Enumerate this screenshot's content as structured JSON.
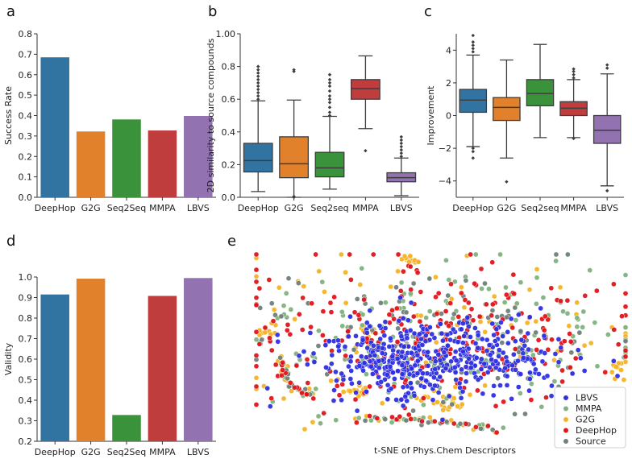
{
  "colors": {
    "DeepHop": "#3274a1",
    "G2G": "#e1812c",
    "Seq2Seq": "#3a923a",
    "MMPA": "#c03d3e",
    "LBVS": "#9372b2",
    "Source": "#808080",
    "scatter_LBVS": "#2e2fe0",
    "scatter_MMPA": "#7fb27f",
    "scatter_G2G": "#f5b324",
    "scatter_DeepHop": "#e0141a",
    "scatter_Source": "#6f7f7a"
  },
  "chart_data": [
    {
      "id": "a",
      "panel_label": "a",
      "type": "bar",
      "categories": [
        "DeepHop",
        "G2G",
        "Seq2Seq",
        "MMPA",
        "LBVS"
      ],
      "values": [
        0.685,
        0.322,
        0.381,
        0.327,
        0.398
      ],
      "ylabel": "Success Rate",
      "xlabel": "",
      "ylim": [
        0,
        0.8
      ],
      "yticks": [
        0.0,
        0.1,
        0.2,
        0.3,
        0.4,
        0.5,
        0.6,
        0.7,
        0.8
      ],
      "ytick_labels": [
        "0.0",
        "0.1",
        "0.2",
        "0.3",
        "0.4",
        "0.5",
        "0.6",
        "0.7",
        "0.8"
      ]
    },
    {
      "id": "b",
      "panel_label": "b",
      "type": "box",
      "categories": [
        "DeepHop",
        "G2G",
        "Seq2seq",
        "MMPA",
        "LBVS"
      ],
      "ylabel": "2D similarity to source compounds",
      "xlabel": "",
      "ylim": [
        0,
        1.0
      ],
      "yticks": [
        0.0,
        0.2,
        0.4,
        0.6,
        0.8,
        1.0
      ],
      "ytick_labels": [
        "0.0",
        "0.2",
        "0.4",
        "0.6",
        "0.8",
        "1.00"
      ],
      "boxes": [
        {
          "q1": 0.155,
          "median": 0.225,
          "q3": 0.33,
          "whislo": 0.035,
          "whishi": 0.59,
          "fliers": [
            0.6,
            0.62,
            0.64,
            0.66,
            0.68,
            0.7,
            0.72,
            0.74,
            0.76,
            0.78,
            0.8
          ]
        },
        {
          "q1": 0.12,
          "median": 0.205,
          "q3": 0.37,
          "whislo": 0.0,
          "whishi": 0.595,
          "fliers": [
            0.77,
            0.78,
            0.0,
            0.005
          ]
        },
        {
          "q1": 0.125,
          "median": 0.18,
          "q3": 0.275,
          "whislo": 0.05,
          "whishi": 0.495,
          "fliers": [
            0.5,
            0.52,
            0.55,
            0.58,
            0.6,
            0.62,
            0.65,
            0.68,
            0.7,
            0.72,
            0.75
          ]
        },
        {
          "q1": 0.6,
          "median": 0.665,
          "q3": 0.72,
          "whislo": 0.42,
          "whishi": 0.865,
          "fliers": [
            0.285
          ]
        },
        {
          "q1": 0.095,
          "median": 0.12,
          "q3": 0.15,
          "whislo": 0.01,
          "whishi": 0.24,
          "fliers": [
            0.25,
            0.27,
            0.29,
            0.31,
            0.33,
            0.35,
            0.37
          ]
        }
      ]
    },
    {
      "id": "c",
      "panel_label": "c",
      "type": "box",
      "categories": [
        "DeepHop",
        "G2G",
        "Seq2seq",
        "MMPA",
        "LBVS"
      ],
      "ylabel": "Improvement",
      "xlabel": "",
      "ylim": [
        -5,
        5
      ],
      "yticks": [
        -4,
        -2,
        0,
        2,
        4
      ],
      "ytick_labels": [
        "−4",
        "−2",
        "0",
        "2",
        "4"
      ],
      "boxes": [
        {
          "q1": 0.2,
          "median": 0.95,
          "q3": 1.6,
          "whislo": -1.9,
          "whishi": 3.7,
          "fliers": [
            3.9,
            4.1,
            4.3,
            4.5,
            4.9,
            -2.0,
            -2.2,
            -2.6
          ]
        },
        {
          "q1": -0.3,
          "median": 0.5,
          "q3": 1.1,
          "whislo": -2.6,
          "whishi": 3.4,
          "fliers": [
            -4.05
          ]
        },
        {
          "q1": 0.6,
          "median": 1.35,
          "q3": 2.2,
          "whislo": -1.35,
          "whishi": 4.35,
          "fliers": []
        },
        {
          "q1": 0.0,
          "median": 0.45,
          "q3": 0.85,
          "whislo": -1.35,
          "whishi": 2.2,
          "fliers": [
            2.3,
            2.5,
            2.7,
            2.85,
            -1.4
          ]
        },
        {
          "q1": -1.7,
          "median": -0.9,
          "q3": 0.0,
          "whislo": -4.3,
          "whishi": 2.55,
          "fliers": [
            2.9,
            3.1,
            -4.6
          ]
        }
      ]
    },
    {
      "id": "d",
      "panel_label": "d",
      "type": "bar",
      "categories": [
        "DeepHop",
        "G2G",
        "Seq2Seq",
        "MMPA",
        "LBVS"
      ],
      "values": [
        0.915,
        0.992,
        0.328,
        0.908,
        0.995
      ],
      "ylabel": "Validity",
      "xlabel": "",
      "ylim": [
        0.2,
        1.0
      ],
      "yticks": [
        0.2,
        0.3,
        0.4,
        0.5,
        0.6,
        0.7,
        0.8,
        0.9,
        1.0
      ],
      "ytick_labels": [
        "0.2",
        "0.3",
        "0.4",
        "0.5",
        "0.6",
        "0.7",
        "0.8",
        "0.9",
        "1.0"
      ]
    },
    {
      "id": "e",
      "panel_label": "e",
      "type": "scatter",
      "title": "t-SNE of Phys.Chem Descriptors",
      "legend": [
        "LBVS",
        "MMPA",
        "G2G",
        "DeepHop",
        "Source"
      ],
      "legend_color_keys": [
        "scatter_LBVS",
        "scatter_MMPA",
        "scatter_G2G",
        "scatter_DeepHop",
        "scatter_Source"
      ],
      "legend_position": "lower-right",
      "axes_visible": false
    }
  ]
}
